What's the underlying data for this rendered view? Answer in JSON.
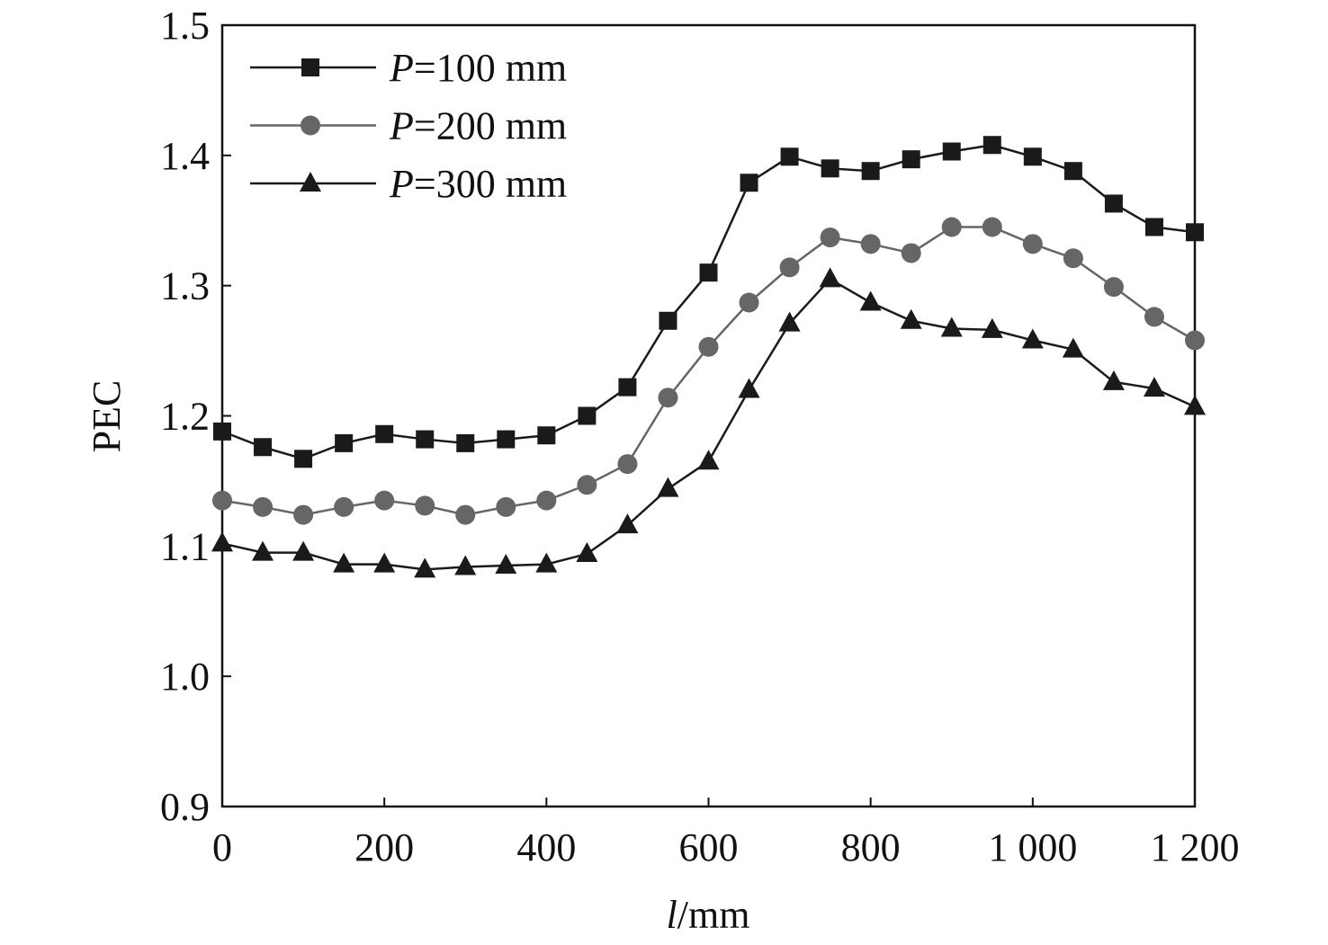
{
  "chart_data": {
    "type": "line",
    "title": "",
    "xlabel_italic": "l",
    "xlabel_rest": "/mm",
    "ylabel": "PEC",
    "xlim": [
      0,
      1200
    ],
    "ylim": [
      0.9,
      1.5
    ],
    "x_ticks": [
      0,
      200,
      400,
      600,
      800,
      1000,
      1200
    ],
    "x_tick_labels": [
      "0",
      "200",
      "400",
      "600",
      "800",
      "1 000",
      "1 200"
    ],
    "y_ticks": [
      0.9,
      1.0,
      1.1,
      1.2,
      1.3,
      1.4,
      1.5
    ],
    "y_tick_labels": [
      "0.9",
      "1.0",
      "1.1",
      "1.2",
      "1.3",
      "1.4",
      "1.5"
    ],
    "grid": false,
    "legend_placement": "top-left",
    "x": [
      0,
      50,
      100,
      150,
      200,
      250,
      300,
      350,
      400,
      450,
      500,
      550,
      600,
      650,
      700,
      750,
      800,
      850,
      900,
      950,
      1000,
      1050,
      1100,
      1150,
      1200
    ],
    "series": [
      {
        "name_italic": "P",
        "name_rest": "=100 mm",
        "marker": "square",
        "color": "#1a1a1a",
        "values": [
          1.188,
          1.176,
          1.167,
          1.179,
          1.186,
          1.182,
          1.179,
          1.182,
          1.185,
          1.2,
          1.222,
          1.273,
          1.31,
          1.379,
          1.399,
          1.39,
          1.388,
          1.397,
          1.403,
          1.408,
          1.399,
          1.388,
          1.363,
          1.345,
          1.341
        ]
      },
      {
        "name_italic": "P",
        "name_rest": "=200 mm",
        "marker": "circle",
        "color": "#666666",
        "values": [
          1.135,
          1.13,
          1.124,
          1.13,
          1.135,
          1.131,
          1.124,
          1.13,
          1.135,
          1.147,
          1.163,
          1.214,
          1.253,
          1.287,
          1.314,
          1.337,
          1.332,
          1.325,
          1.345,
          1.345,
          1.332,
          1.321,
          1.299,
          1.276,
          1.258
        ]
      },
      {
        "name_italic": "P",
        "name_rest": "=300 mm",
        "marker": "triangle",
        "color": "#1a1a1a",
        "values": [
          1.102,
          1.095,
          1.095,
          1.086,
          1.086,
          1.082,
          1.084,
          1.085,
          1.086,
          1.094,
          1.116,
          1.144,
          1.165,
          1.22,
          1.271,
          1.305,
          1.287,
          1.273,
          1.267,
          1.266,
          1.258,
          1.251,
          1.226,
          1.221,
          1.207
        ]
      }
    ]
  }
}
